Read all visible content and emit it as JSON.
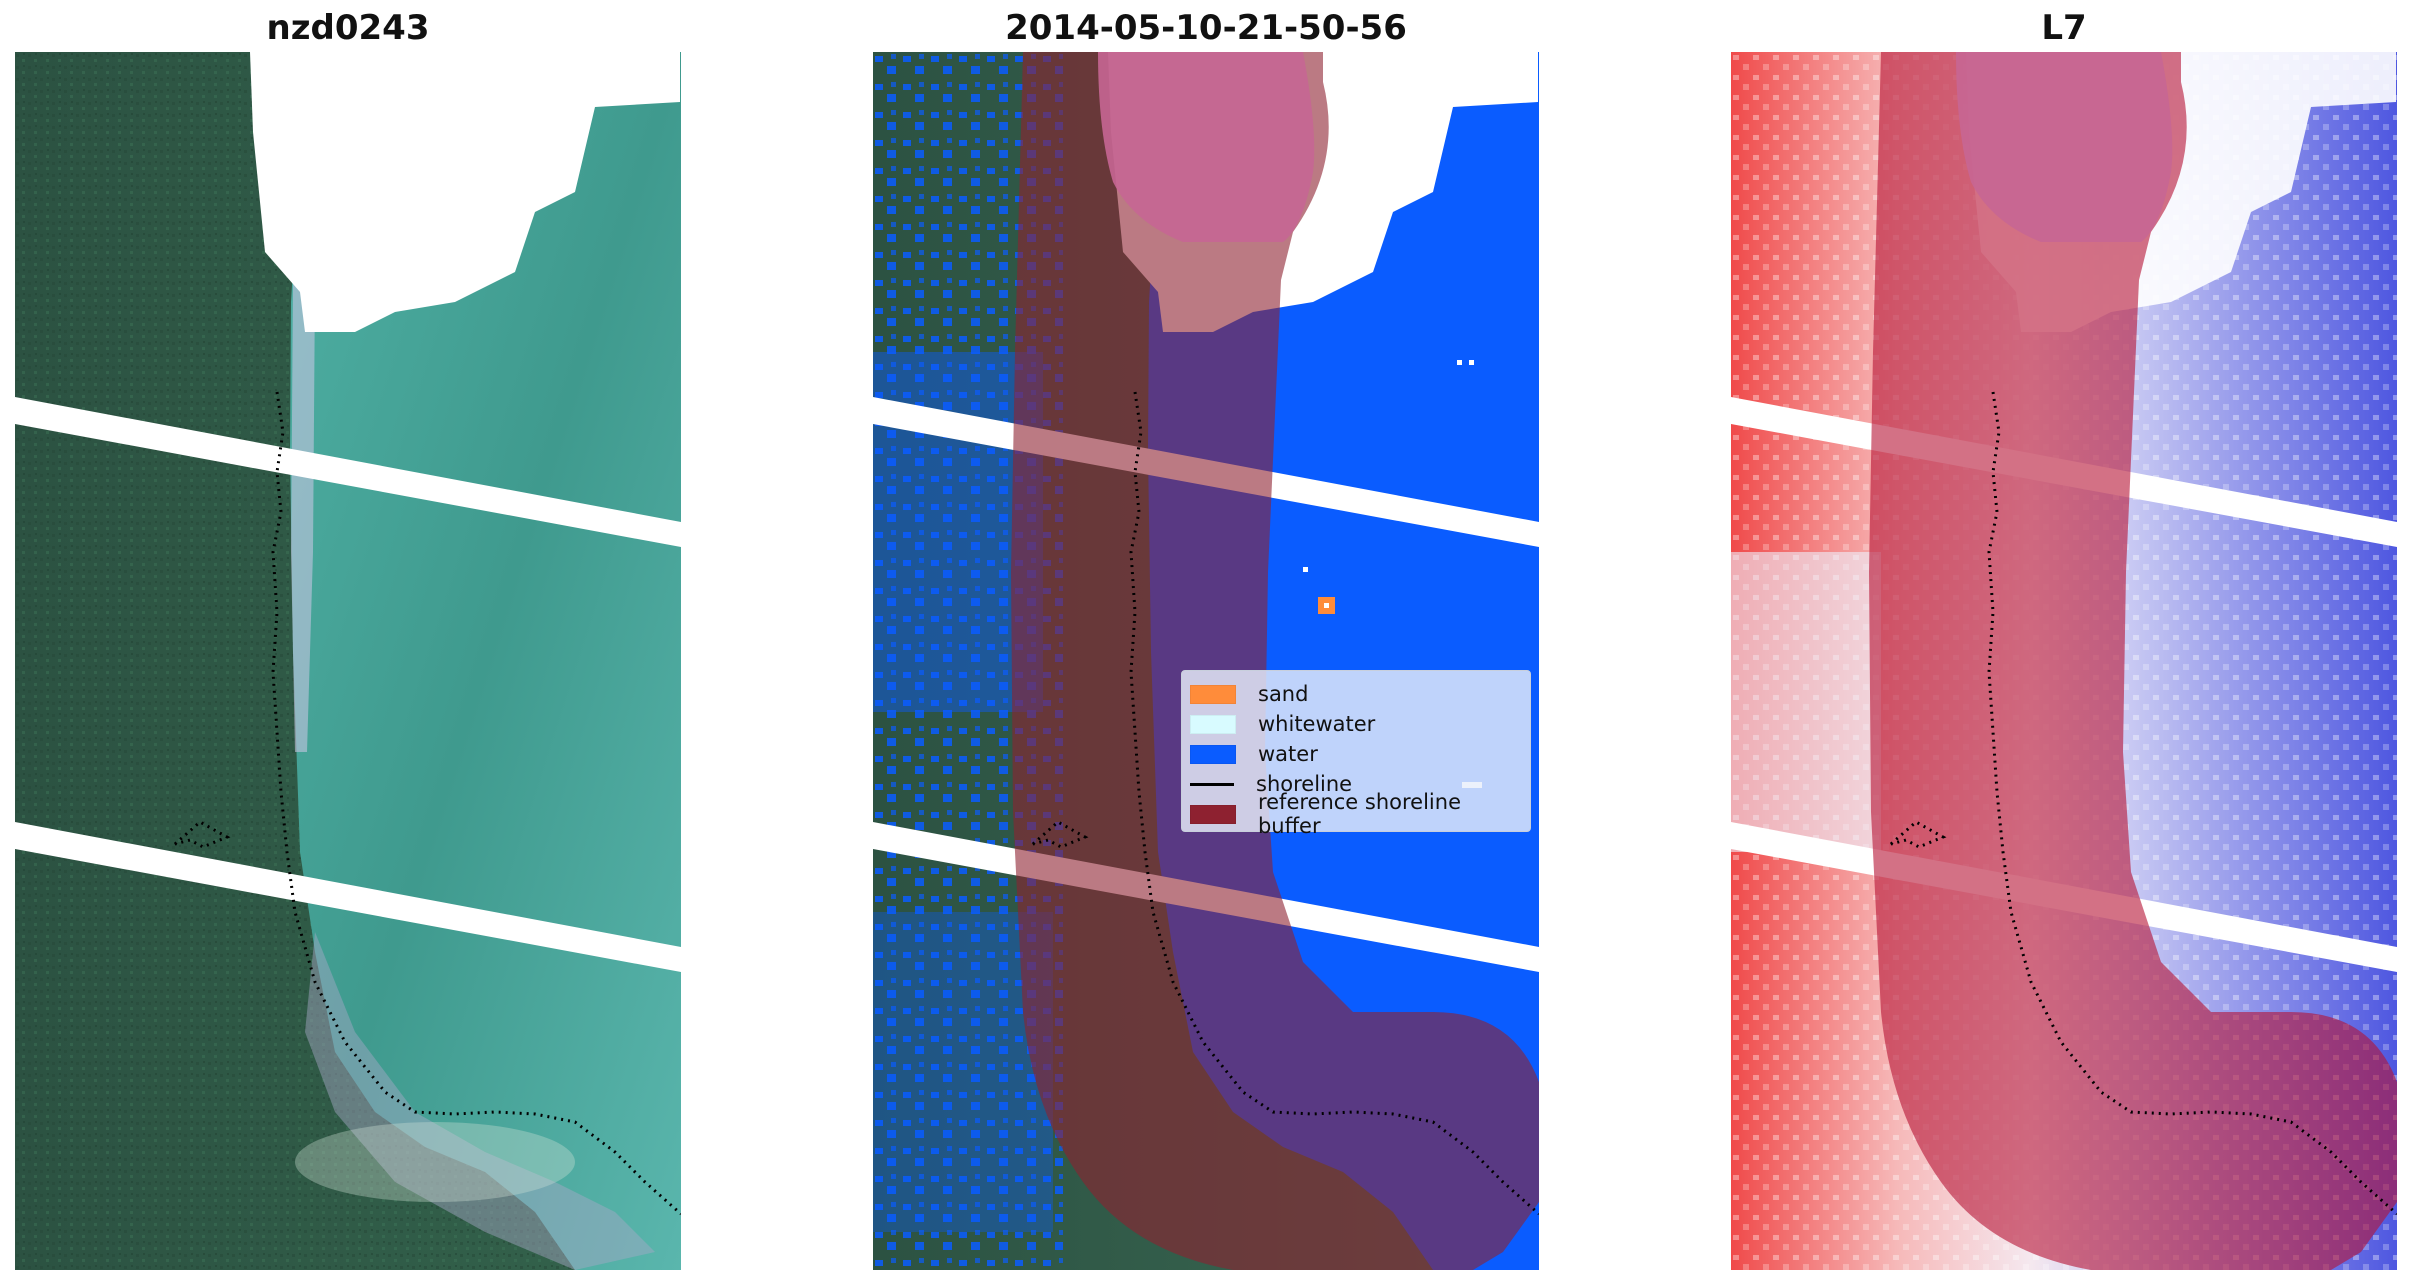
{
  "panels": [
    {
      "title": "nzd0243",
      "layer": "rgb"
    },
    {
      "title": "2014-05-10-21-50-56",
      "layer": "classified"
    },
    {
      "title": "L7",
      "layer": "index"
    }
  ],
  "legend": {
    "items": [
      {
        "label": "sand",
        "color": "#ff8c3a",
        "kind": "patch"
      },
      {
        "label": "whitewater",
        "color": "#d8fbff",
        "kind": "patch"
      },
      {
        "label": "water",
        "color": "#0a5cff",
        "kind": "patch"
      },
      {
        "label": "shoreline",
        "color": "#000000",
        "kind": "line"
      },
      {
        "label": "reference shoreline buffer",
        "color": "#8e2130",
        "kind": "patch"
      }
    ]
  },
  "colors": {
    "land_dark": "#2f5a45",
    "water_teal": "#4aa79d",
    "classified_water": "#0a5cff",
    "buffer_overlay": "#8e2130",
    "buffer_top": "#c76694",
    "index_red": "#e5383b",
    "index_blue": "#3b46d8"
  }
}
